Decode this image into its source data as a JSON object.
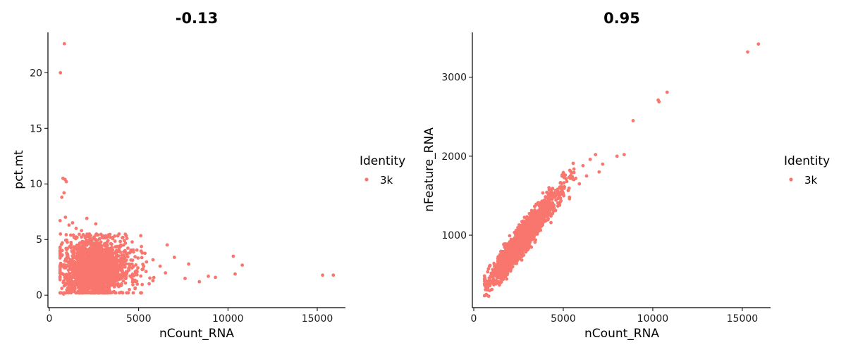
{
  "chart_data": [
    {
      "type": "scatter",
      "title": "-0.13",
      "xlabel": "nCount_RNA",
      "ylabel": "pct.mt",
      "xlim": [
        0,
        16500
      ],
      "ylim": [
        -1,
        23.5
      ],
      "xticks": [
        0,
        5000,
        10000,
        15000
      ],
      "yticks": [
        0,
        5,
        10,
        15,
        20
      ],
      "xtick_labels": [
        "0",
        "5000",
        "10000",
        "15000"
      ],
      "ytick_labels": [
        "0",
        "5",
        "10",
        "15",
        "20"
      ],
      "grid": false,
      "legend": {
        "title": "Identity",
        "position": "right",
        "entries": [
          "3k"
        ]
      },
      "series": [
        {
          "name": "3k",
          "color": "#F8766D",
          "points": [
            [
              620,
              20.0
            ],
            [
              840,
              22.6
            ],
            [
              760,
              10.5
            ],
            [
              880,
              10.4
            ],
            [
              950,
              10.2
            ],
            [
              700,
              8.8
            ],
            [
              820,
              9.2
            ],
            [
              600,
              6.7
            ],
            [
              900,
              7.0
            ],
            [
              1100,
              6.3
            ],
            [
              1300,
              6.5
            ],
            [
              1500,
              6.0
            ],
            [
              1800,
              5.8
            ],
            [
              2100,
              6.9
            ],
            [
              2600,
              6.4
            ],
            [
              3200,
              5.2
            ],
            [
              4200,
              4.9
            ],
            [
              5200,
              3.8
            ],
            [
              6200,
              2.6
            ],
            [
              7000,
              3.4
            ],
            [
              7800,
              2.8
            ],
            [
              8400,
              1.2
            ],
            [
              8900,
              1.7
            ],
            [
              10300,
              3.5
            ],
            [
              10800,
              2.7
            ],
            [
              10400,
              1.9
            ],
            [
              7600,
              1.5
            ],
            [
              9300,
              1.6
            ],
            [
              15300,
              1.8
            ],
            [
              15900,
              1.8
            ],
            [
              6500,
              2.0
            ],
            [
              5800,
              1.3
            ],
            [
              650,
              0.2
            ],
            [
              800,
              0.1
            ],
            [
              1000,
              0.3
            ],
            [
              700,
              0.6
            ]
          ],
          "cloud": {
            "x_min": 600,
            "x_peak": 2200,
            "x_max": 6800,
            "y_center": 2.2,
            "y_spread": 1.1,
            "count": 2200
          }
        }
      ]
    },
    {
      "type": "scatter",
      "title": "0.95",
      "xlabel": "nCount_RNA",
      "ylabel": "nFeature_RNA",
      "xlim": [
        0,
        16500
      ],
      "ylim": [
        100,
        3550
      ],
      "xticks": [
        0,
        5000,
        10000,
        15000
      ],
      "yticks": [
        1000,
        2000,
        3000
      ],
      "xtick_labels": [
        "0",
        "5000",
        "10000",
        "15000"
      ],
      "ytick_labels": [
        "1000",
        "2000",
        "3000"
      ],
      "grid": false,
      "legend": {
        "title": "Identity",
        "position": "right",
        "entries": [
          "3k"
        ]
      },
      "series": [
        {
          "name": "3k",
          "color": "#F8766D",
          "points": [
            [
              15300,
              3320
            ],
            [
              15900,
              3420
            ],
            [
              10300,
              2710
            ],
            [
              10800,
              2810
            ],
            [
              8900,
              2450
            ],
            [
              10350,
              2690
            ],
            [
              8400,
              2020
            ],
            [
              8000,
              2000
            ],
            [
              7200,
              1900
            ],
            [
              7000,
              1800
            ],
            [
              6800,
              2020
            ],
            [
              6500,
              1960
            ],
            [
              6100,
              1880
            ],
            [
              6300,
              1750
            ],
            [
              5700,
              1720
            ],
            [
              5900,
              1650
            ],
            [
              5200,
              1680
            ],
            [
              4900,
              1550
            ],
            [
              4500,
              1480
            ],
            [
              4800,
              1380
            ],
            [
              700,
              250
            ],
            [
              650,
              310
            ],
            [
              900,
              360
            ],
            [
              1200,
              420
            ],
            [
              1500,
              520
            ]
          ],
          "cloud": {
            "x_min": 600,
            "x_peak": 2400,
            "x_max": 5600,
            "slope": 0.29,
            "intercept": 160,
            "spread": 90,
            "count": 2200
          }
        }
      ]
    }
  ]
}
